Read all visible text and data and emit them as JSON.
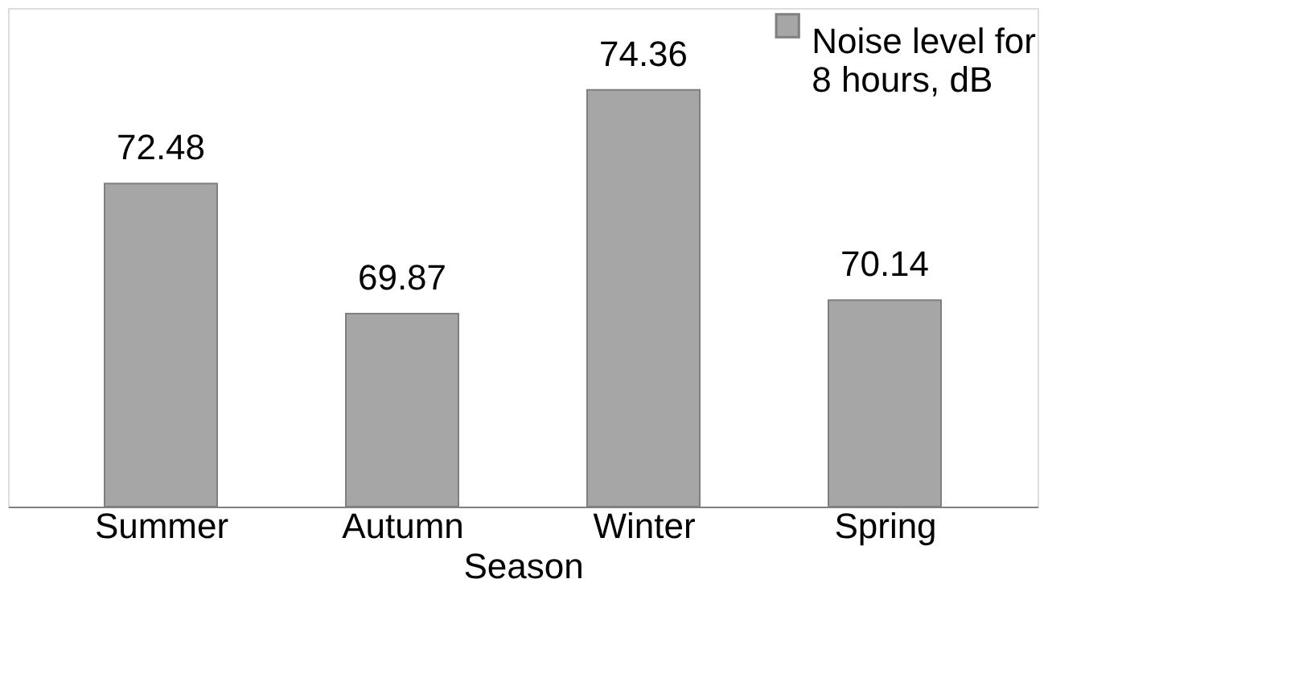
{
  "chart_data": {
    "type": "bar",
    "xlabel": "Season",
    "categories": [
      "Summer",
      "Autumn",
      "Winter",
      "Spring"
    ],
    "series": [
      {
        "name": "Noise level for 8 hours, dB",
        "color": "#a6a6a6",
        "values": [
          72.48,
          69.87,
          74.36,
          70.14
        ]
      }
    ],
    "ylim": [
      66,
      76
    ],
    "tick_labels": "x",
    "data_labels": true,
    "grid": false,
    "legend": "top right"
  }
}
